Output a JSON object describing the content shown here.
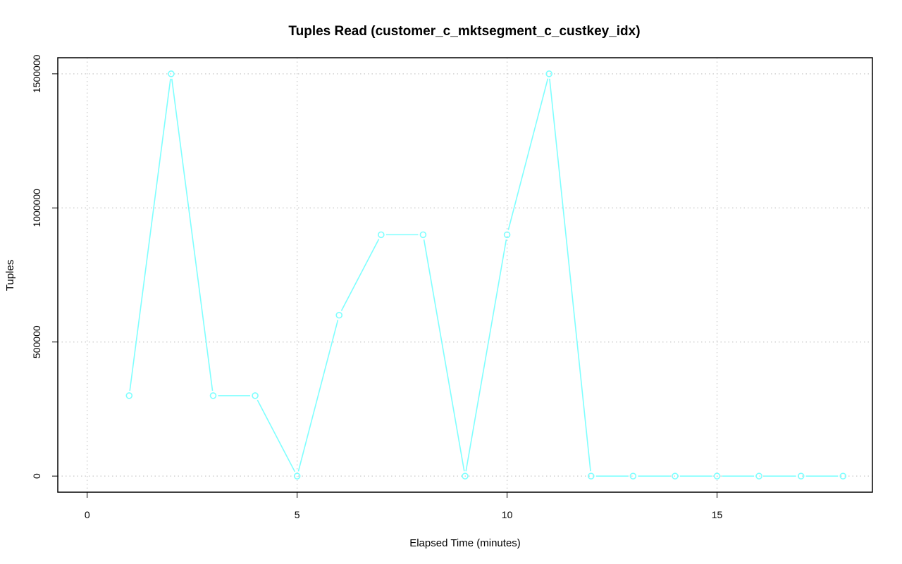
{
  "chart_data": {
    "type": "line",
    "title": "Tuples Read (customer_c_mktsegment_c_custkey_idx)",
    "xlabel": "Elapsed Time (minutes)",
    "ylabel": "Tuples",
    "xlim": [
      -0.7,
      18.7
    ],
    "ylim": [
      -60000,
      1560000
    ],
    "x_ticks": [
      0,
      5,
      10,
      15
    ],
    "y_ticks": [
      0,
      500000,
      1000000,
      1500000
    ],
    "x_tick_labels": [
      "0",
      "5",
      "10",
      "15"
    ],
    "y_tick_labels": [
      "0",
      "500000",
      "1000000",
      "1500000"
    ],
    "grid": true,
    "series": [
      {
        "color": "#7fffff",
        "marker": "open-circle",
        "x": [
          1,
          2,
          3,
          4,
          5,
          6,
          7,
          8,
          9,
          10,
          11,
          12,
          13,
          14,
          15,
          16,
          17,
          18
        ],
        "y": [
          300000,
          1500000,
          300000,
          300000,
          0,
          600000,
          900000,
          900000,
          0,
          900000,
          1500000,
          0,
          0,
          0,
          0,
          0,
          0,
          0
        ]
      }
    ]
  }
}
